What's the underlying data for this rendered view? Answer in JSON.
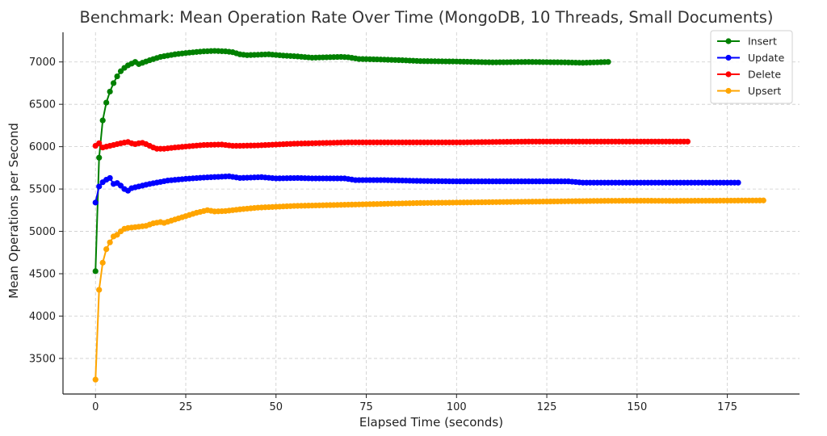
{
  "chart_data": {
    "type": "line",
    "title": "Benchmark: Mean Operation Rate Over Time (MongoDB, 10 Threads, Small Documents)",
    "xlabel": "Elapsed Time (seconds)",
    "ylabel": "Mean Operations per Second",
    "xlim": [
      -9,
      195
    ],
    "ylim": [
      3080,
      7350
    ],
    "xticks": [
      0,
      25,
      50,
      75,
      100,
      125,
      150,
      175
    ],
    "yticks": [
      3500,
      4000,
      4500,
      5000,
      5500,
      6000,
      6500,
      7000
    ],
    "grid": true,
    "legend_position": "top-right",
    "series": [
      {
        "name": "Insert",
        "color": "#008000",
        "x_max": 142,
        "anchors": [
          [
            0,
            4530
          ],
          [
            1,
            5870
          ],
          [
            2,
            6310
          ],
          [
            3,
            6520
          ],
          [
            4,
            6650
          ],
          [
            5,
            6750
          ],
          [
            6,
            6830
          ],
          [
            7,
            6890
          ],
          [
            8,
            6930
          ],
          [
            9,
            6960
          ],
          [
            10,
            6980
          ],
          [
            11,
            7000
          ],
          [
            12,
            6975
          ],
          [
            13,
            6990
          ],
          [
            15,
            7020
          ],
          [
            18,
            7060
          ],
          [
            22,
            7090
          ],
          [
            26,
            7110
          ],
          [
            30,
            7125
          ],
          [
            33,
            7130
          ],
          [
            36,
            7125
          ],
          [
            38,
            7115
          ],
          [
            40,
            7090
          ],
          [
            42,
            7080
          ],
          [
            45,
            7085
          ],
          [
            48,
            7090
          ],
          [
            52,
            7075
          ],
          [
            56,
            7065
          ],
          [
            60,
            7050
          ],
          [
            64,
            7055
          ],
          [
            68,
            7060
          ],
          [
            70,
            7055
          ],
          [
            73,
            7035
          ],
          [
            78,
            7030
          ],
          [
            85,
            7020
          ],
          [
            90,
            7010
          ],
          [
            100,
            7005
          ],
          [
            110,
            6995
          ],
          [
            120,
            7000
          ],
          [
            130,
            6995
          ],
          [
            135,
            6990
          ],
          [
            142,
            7000
          ]
        ]
      },
      {
        "name": "Update",
        "color": "#0000ff",
        "x_max": 178,
        "anchors": [
          [
            0,
            5340
          ],
          [
            1,
            5530
          ],
          [
            2,
            5580
          ],
          [
            3,
            5610
          ],
          [
            4,
            5630
          ],
          [
            5,
            5560
          ],
          [
            6,
            5570
          ],
          [
            7,
            5540
          ],
          [
            8,
            5500
          ],
          [
            9,
            5480
          ],
          [
            10,
            5510
          ],
          [
            12,
            5530
          ],
          [
            15,
            5560
          ],
          [
            20,
            5600
          ],
          [
            25,
            5620
          ],
          [
            30,
            5635
          ],
          [
            37,
            5650
          ],
          [
            40,
            5630
          ],
          [
            46,
            5640
          ],
          [
            50,
            5625
          ],
          [
            56,
            5630
          ],
          [
            60,
            5625
          ],
          [
            69,
            5625
          ],
          [
            72,
            5605
          ],
          [
            80,
            5605
          ],
          [
            90,
            5595
          ],
          [
            100,
            5590
          ],
          [
            110,
            5590
          ],
          [
            120,
            5590
          ],
          [
            131,
            5590
          ],
          [
            135,
            5575
          ],
          [
            145,
            5575
          ],
          [
            160,
            5575
          ],
          [
            178,
            5575
          ]
        ]
      },
      {
        "name": "Delete",
        "color": "#ff0000",
        "x_max": 164,
        "anchors": [
          [
            0,
            6010
          ],
          [
            1,
            6040
          ],
          [
            2,
            5990
          ],
          [
            3,
            6000
          ],
          [
            4,
            6010
          ],
          [
            5,
            6020
          ],
          [
            7,
            6040
          ],
          [
            9,
            6055
          ],
          [
            10,
            6040
          ],
          [
            11,
            6030
          ],
          [
            12,
            6040
          ],
          [
            13,
            6045
          ],
          [
            14,
            6030
          ],
          [
            15,
            6010
          ],
          [
            16,
            5990
          ],
          [
            17,
            5975
          ],
          [
            19,
            5975
          ],
          [
            22,
            5990
          ],
          [
            26,
            6005
          ],
          [
            30,
            6020
          ],
          [
            35,
            6025
          ],
          [
            38,
            6010
          ],
          [
            40,
            6010
          ],
          [
            45,
            6015
          ],
          [
            50,
            6025
          ],
          [
            55,
            6035
          ],
          [
            60,
            6040
          ],
          [
            65,
            6045
          ],
          [
            70,
            6050
          ],
          [
            80,
            6050
          ],
          [
            90,
            6050
          ],
          [
            100,
            6050
          ],
          [
            110,
            6055
          ],
          [
            120,
            6060
          ],
          [
            130,
            6060
          ],
          [
            140,
            6060
          ],
          [
            150,
            6060
          ],
          [
            164,
            6060
          ]
        ]
      },
      {
        "name": "Upsert",
        "color": "#ffa500",
        "x_max": 185,
        "anchors": [
          [
            0,
            3250
          ],
          [
            1,
            4310
          ],
          [
            2,
            4630
          ],
          [
            3,
            4790
          ],
          [
            4,
            4870
          ],
          [
            5,
            4940
          ],
          [
            6,
            4960
          ],
          [
            7,
            5000
          ],
          [
            8,
            5030
          ],
          [
            9,
            5040
          ],
          [
            10,
            5045
          ],
          [
            12,
            5055
          ],
          [
            14,
            5065
          ],
          [
            16,
            5095
          ],
          [
            18,
            5110
          ],
          [
            19,
            5100
          ],
          [
            22,
            5140
          ],
          [
            25,
            5180
          ],
          [
            28,
            5220
          ],
          [
            31,
            5250
          ],
          [
            33,
            5235
          ],
          [
            36,
            5240
          ],
          [
            40,
            5260
          ],
          [
            45,
            5280
          ],
          [
            50,
            5290
          ],
          [
            55,
            5300
          ],
          [
            60,
            5305
          ],
          [
            70,
            5315
          ],
          [
            80,
            5325
          ],
          [
            90,
            5335
          ],
          [
            100,
            5340
          ],
          [
            110,
            5345
          ],
          [
            120,
            5350
          ],
          [
            130,
            5355
          ],
          [
            140,
            5360
          ],
          [
            150,
            5362
          ],
          [
            160,
            5360
          ],
          [
            170,
            5362
          ],
          [
            185,
            5365
          ]
        ]
      }
    ]
  }
}
